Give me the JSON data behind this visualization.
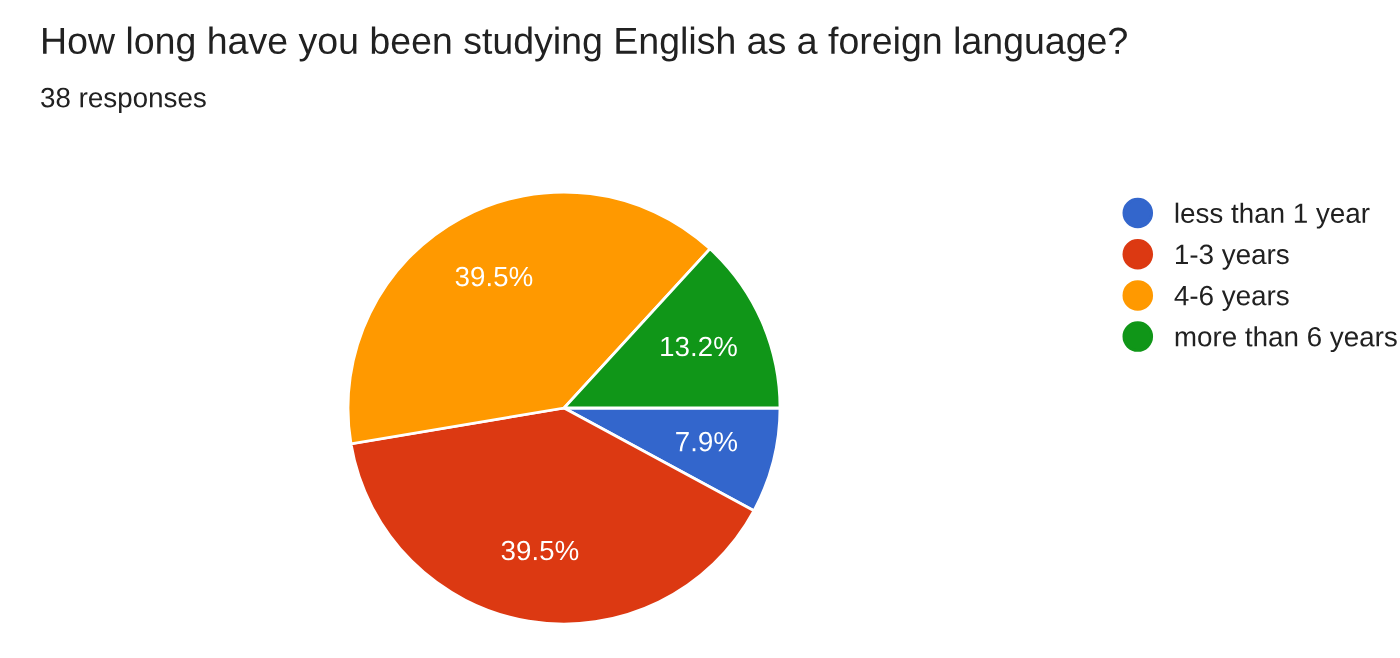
{
  "chart_data": {
    "type": "pie",
    "title": "How long have you been studying English as a foreign language?",
    "subtitle": "38 responses",
    "categories": [
      "less than 1 year",
      "1-3 years",
      "4-6 years",
      "more than 6 years"
    ],
    "values": [
      7.9,
      39.5,
      39.5,
      13.2
    ],
    "colors": [
      "#3366cc",
      "#dc3912",
      "#ff9900",
      "#109618"
    ],
    "value_labels": [
      "7.9%",
      "39.5%",
      "39.5%",
      "13.2%"
    ],
    "legend": "right"
  }
}
